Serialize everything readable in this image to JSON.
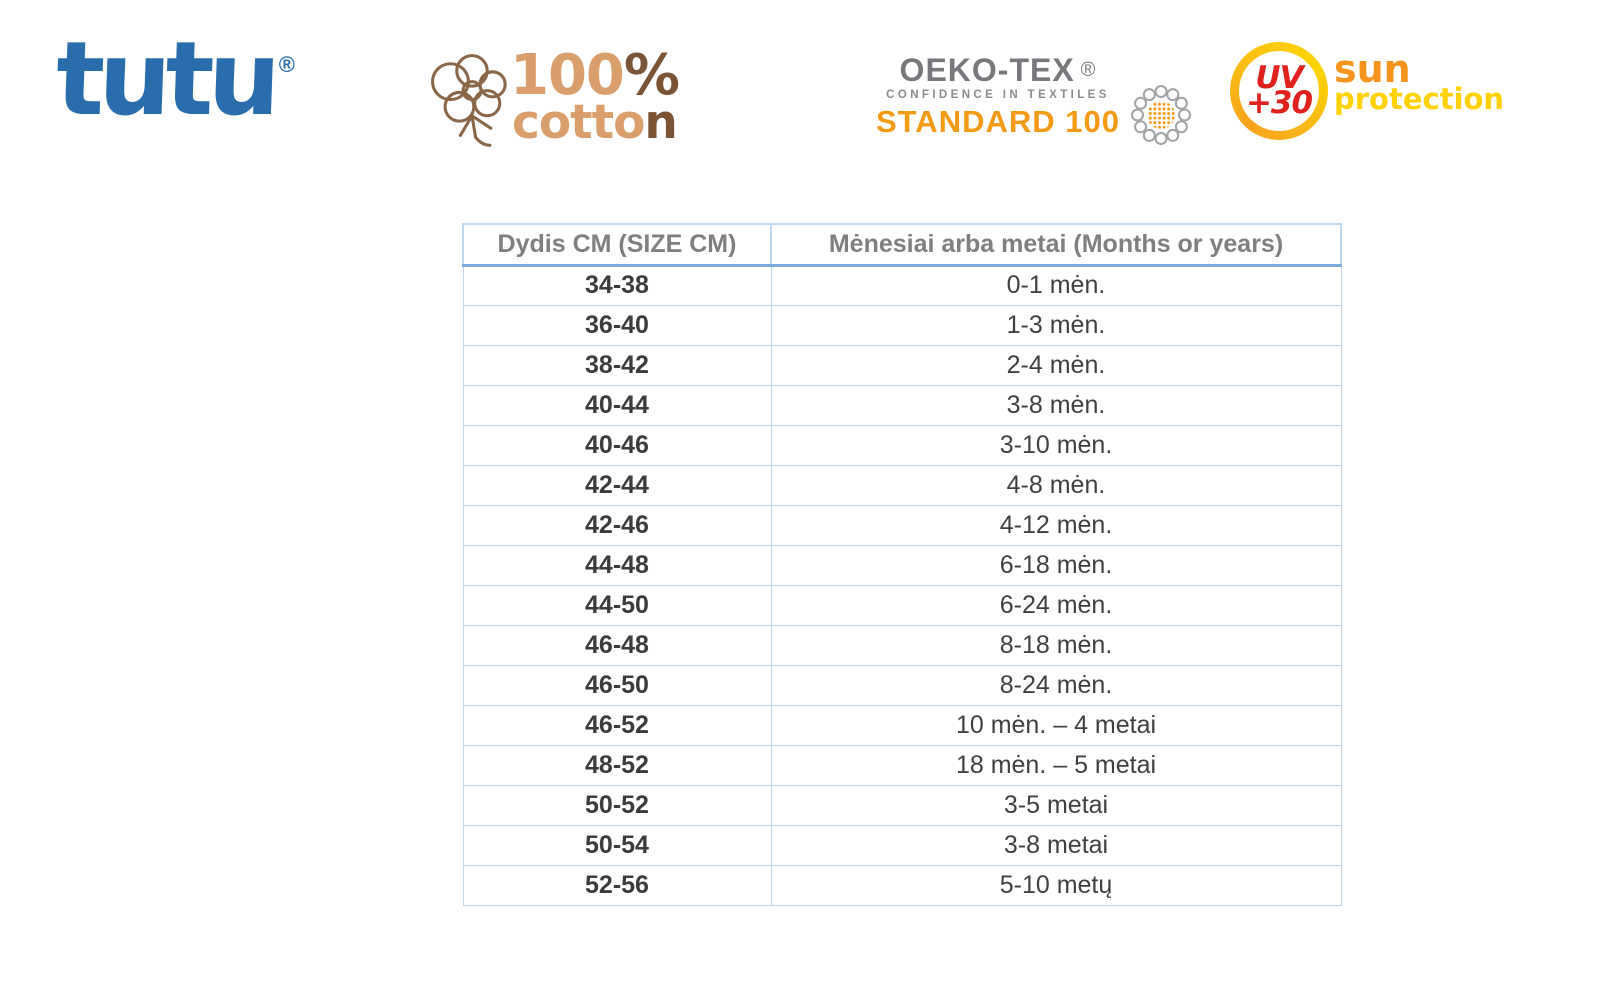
{
  "logos": {
    "tutu": {
      "wordmark": "tutu",
      "registered": "®",
      "color": "#2a6dad"
    },
    "cotton": {
      "label_100": "100%",
      "label_word": "cotton",
      "parts": {
        "num": "100",
        "pct": "%",
        "word_head": "cotto",
        "word_tail": "n"
      },
      "tan": "#d99e6c",
      "dark_brown": "#7b5435",
      "flower_brown": "#8a6647"
    },
    "oekotex": {
      "title": "OEKO-TEX",
      "registered": "®",
      "subtitle": "CONFIDENCE IN TEXTILES",
      "standard": "STANDARD 100",
      "gray": "#77787b",
      "orange": "#f49a15"
    },
    "uv": {
      "badge_line1": "UV",
      "badge_line2": "+30",
      "side_line1": "sun",
      "side_line2": "protection",
      "red": "#e0211c",
      "orange": "#f7941d",
      "yellow": "#ffd200"
    }
  },
  "table": {
    "headers": [
      "Dydis CM (SIZE CM)",
      "Mėnesiai arba metai (Months or years)"
    ],
    "rows": [
      [
        "34-38",
        "0-1 mėn."
      ],
      [
        "36-40",
        "1-3 mėn."
      ],
      [
        "38-42",
        "2-4 mėn."
      ],
      [
        "40-44",
        "3-8 mėn."
      ],
      [
        "40-46",
        "3-10 mėn."
      ],
      [
        "42-44",
        "4-8 mėn."
      ],
      [
        "42-46",
        "4-12 mėn."
      ],
      [
        "44-48",
        "6-18 mėn."
      ],
      [
        "44-50",
        "6-24 mėn."
      ],
      [
        "46-48",
        "8-18 mėn."
      ],
      [
        "46-50",
        "8-24 mėn."
      ],
      [
        "46-52",
        "10 mėn. – 4 metai"
      ],
      [
        "48-52",
        "18 mėn. – 5 metai"
      ],
      [
        "50-52",
        "3-5 metai"
      ],
      [
        "50-54",
        "3-8 metai"
      ],
      [
        "52-56",
        "5-10 metų"
      ]
    ],
    "border_light": "#bdd7ee",
    "border_accent": "#7aadde",
    "header_text_color": "#7f7f7f",
    "cell_text_color": "#3f3f3f"
  }
}
